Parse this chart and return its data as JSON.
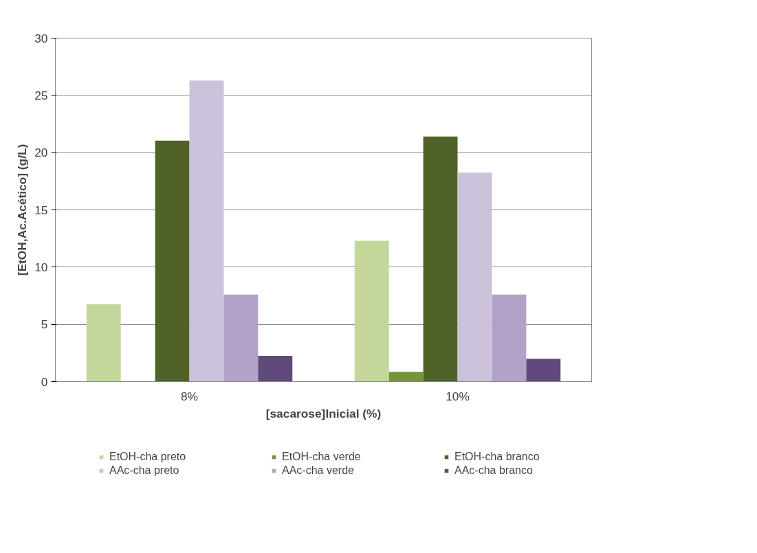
{
  "chart_data": {
    "type": "bar",
    "xlabel": "[sacarose]Inicial (%)",
    "ylabel": "[EtOH,Ac.Acético] (g/L)",
    "categories": [
      "8%",
      "10%"
    ],
    "series": [
      {
        "name": "EtOH-cha preto",
        "color": "#c4d79b",
        "values": [
          6.75,
          12.3
        ]
      },
      {
        "name": "EtOH-cha verde",
        "color": "#77933c",
        "values": [
          0,
          0.85
        ]
      },
      {
        "name": "EtOH-cha branco",
        "color": "#4f6228",
        "values": [
          21.05,
          21.4
        ]
      },
      {
        "name": "AAc-cha preto",
        "color": "#ccc1da",
        "values": [
          26.3,
          18.25
        ]
      },
      {
        "name": "AAc-cha verde",
        "color": "#b3a2c7",
        "values": [
          7.6,
          7.6
        ]
      },
      {
        "name": "AAc-cha branco",
        "color": "#604a7b",
        "values": [
          2.25,
          2.0
        ]
      }
    ],
    "ylim": [
      0,
      30
    ],
    "yticks": [
      0,
      5,
      10,
      15,
      20,
      25,
      30
    ],
    "grid": "y",
    "legend": "bottom"
  }
}
